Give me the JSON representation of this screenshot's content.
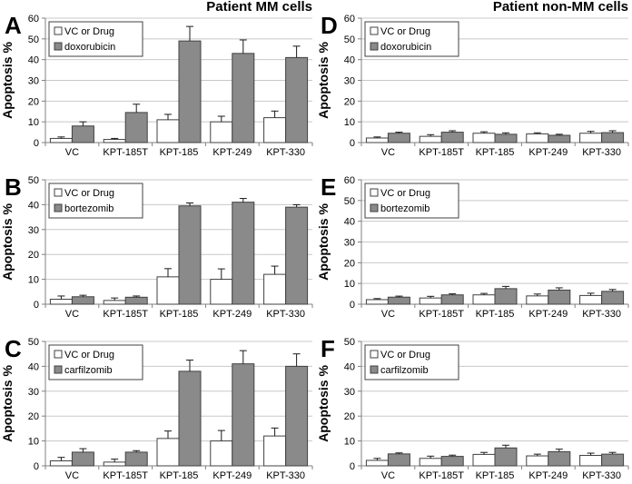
{
  "colors": {
    "control_fill": "#ffffff",
    "drug_fill": "#8a8a8a",
    "bar_border": "#404040",
    "gridline": "#c8c8c8",
    "axis": "#808080",
    "error_bar": "#1a1a1a",
    "text": "#000000",
    "background": "#ffffff"
  },
  "chart_data": [
    {
      "type": "bar",
      "panel_letter": "A",
      "title": "Patient MM cells",
      "ylabel": "Apoptosis %",
      "ylim": [
        0,
        60
      ],
      "ytick_step": 10,
      "grid": true,
      "legend_position": "top-left",
      "categories": [
        "VC",
        "KPT-185T",
        "KPT-185",
        "KPT-249",
        "KPT-330"
      ],
      "series": [
        {
          "name": "VC or Drug",
          "role": "control",
          "values": [
            2,
            1.5,
            11,
            10,
            12
          ],
          "errors": [
            0.7,
            0.5,
            2.6,
            2.7,
            3.2
          ]
        },
        {
          "name": "doxorubicin",
          "role": "drug",
          "values": [
            8,
            14.5,
            49,
            43,
            41
          ],
          "errors": [
            2,
            4,
            7,
            6.5,
            5.5
          ]
        }
      ]
    },
    {
      "type": "bar",
      "panel_letter": "B",
      "title": "",
      "ylabel": "Apoptosis %",
      "ylim": [
        0,
        50
      ],
      "ytick_step": 10,
      "grid": true,
      "legend_position": "top-left",
      "categories": [
        "VC",
        "KPT-185T",
        "KPT-185",
        "KPT-249",
        "KPT-330"
      ],
      "series": [
        {
          "name": "VC or Drug",
          "role": "control",
          "values": [
            2,
            1.5,
            11,
            10,
            12
          ],
          "errors": [
            1.3,
            1,
            3.3,
            4.2,
            3.3
          ]
        },
        {
          "name": "bortezomib",
          "role": "drug",
          "values": [
            3,
            2.8,
            39.5,
            41,
            39
          ],
          "errors": [
            0.6,
            0.5,
            1.2,
            1.5,
            1
          ]
        }
      ]
    },
    {
      "type": "bar",
      "panel_letter": "C",
      "title": "",
      "ylabel": "Apoptosis %",
      "ylim": [
        0,
        50
      ],
      "ytick_step": 10,
      "grid": true,
      "legend_position": "top-left",
      "categories": [
        "VC",
        "KPT-185T",
        "KPT-185",
        "KPT-249",
        "KPT-330"
      ],
      "series": [
        {
          "name": "VC or Drug",
          "role": "control",
          "values": [
            2,
            1.5,
            11,
            10,
            12
          ],
          "errors": [
            1.4,
            1.2,
            3,
            4.2,
            3.2
          ]
        },
        {
          "name": "carfilzomib",
          "role": "drug",
          "values": [
            5.5,
            5.5,
            38,
            41,
            40
          ],
          "errors": [
            1.4,
            0.6,
            4.5,
            5.3,
            5
          ]
        }
      ]
    },
    {
      "type": "bar",
      "panel_letter": "D",
      "title": "Patient non-MM cells",
      "ylabel": "Apoptosis %",
      "ylim": [
        0,
        60
      ],
      "ytick_step": 10,
      "grid": true,
      "legend_position": "top-left",
      "categories": [
        "VC",
        "KPT-185T",
        "KPT-185",
        "KPT-249",
        "KPT-330"
      ],
      "series": [
        {
          "name": "VC or Drug",
          "role": "control",
          "values": [
            2.2,
            3,
            4.5,
            4.2,
            4.5
          ],
          "errors": [
            0.5,
            0.8,
            0.7,
            0.5,
            0.9
          ]
        },
        {
          "name": "doxorubicin",
          "role": "drug",
          "values": [
            4.5,
            5,
            4,
            3.5,
            4.8
          ],
          "errors": [
            0.5,
            0.7,
            0.7,
            0.5,
            0.9
          ]
        }
      ]
    },
    {
      "type": "bar",
      "panel_letter": "E",
      "title": "",
      "ylabel": "Apoptosis %",
      "ylim": [
        0,
        60
      ],
      "ytick_step": 10,
      "grid": true,
      "legend_position": "top-left",
      "categories": [
        "VC",
        "KPT-185T",
        "KPT-185",
        "KPT-249",
        "KPT-330"
      ],
      "series": [
        {
          "name": "VC or Drug",
          "role": "control",
          "values": [
            2.2,
            3,
            4.5,
            4,
            4.2
          ],
          "errors": [
            0.5,
            0.8,
            0.7,
            0.9,
            1.1
          ]
        },
        {
          "name": "bortezomib",
          "role": "drug",
          "values": [
            3.4,
            4.5,
            7.5,
            6.8,
            6.2
          ],
          "errors": [
            0.5,
            0.5,
            1.1,
            1.1,
            0.9
          ]
        }
      ]
    },
    {
      "type": "bar",
      "panel_letter": "F",
      "title": "",
      "ylabel": "Apoptosis %",
      "ylim": [
        0,
        50
      ],
      "ytick_step": 10,
      "grid": true,
      "legend_position": "top-left",
      "categories": [
        "VC",
        "KPT-185T",
        "KPT-185",
        "KPT-249",
        "KPT-330"
      ],
      "series": [
        {
          "name": "VC or Drug",
          "role": "control",
          "values": [
            2.2,
            3,
            4.6,
            4,
            4.2
          ],
          "errors": [
            0.8,
            0.9,
            0.8,
            0.7,
            0.9
          ]
        },
        {
          "name": "carfilzomib",
          "role": "drug",
          "values": [
            4.8,
            3.8,
            7.2,
            5.7,
            4.7
          ],
          "errors": [
            0.4,
            0.5,
            1.1,
            1,
            0.7
          ]
        }
      ]
    }
  ]
}
